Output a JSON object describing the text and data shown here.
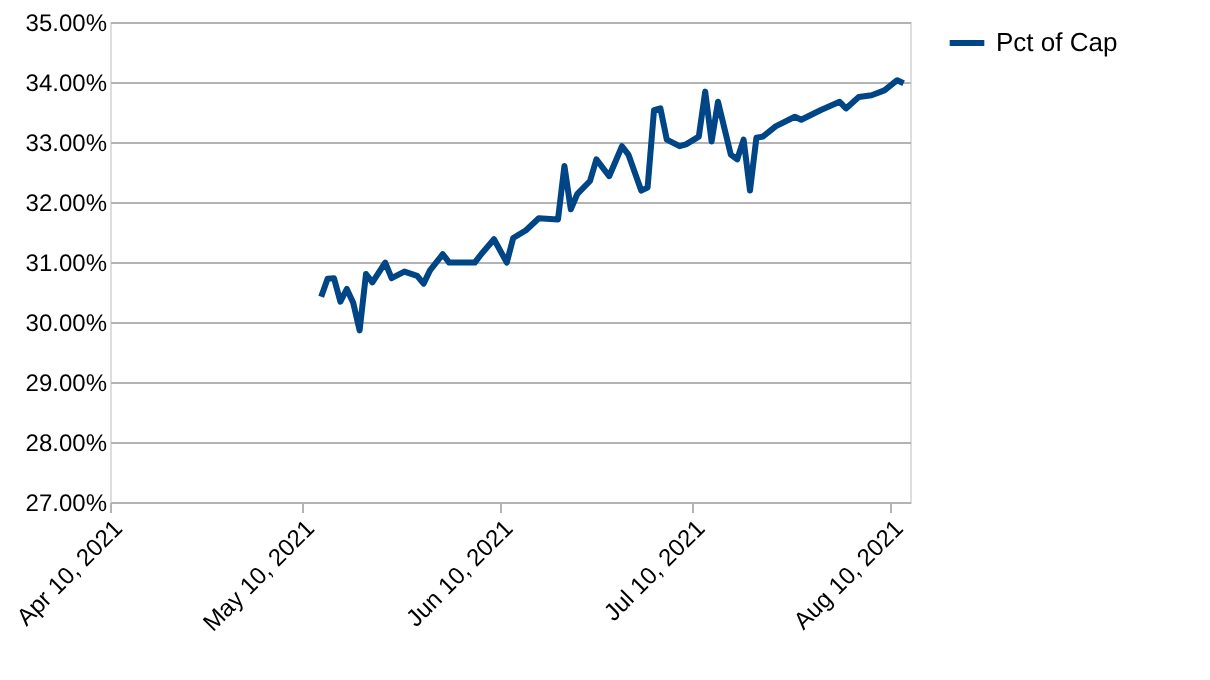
{
  "chart_data": {
    "type": "line",
    "legend": "right",
    "grid": "y",
    "marker": "none",
    "line_style": "solid",
    "xlim": [
      "2021-04-10",
      "2021-08-13"
    ],
    "xticks": [
      {
        "value": "2021-04-10",
        "label": "Apr 10, 2021"
      },
      {
        "value": "2021-05-10",
        "label": "May 10, 2021"
      },
      {
        "value": "2021-06-10",
        "label": "Jun 10, 2021"
      },
      {
        "value": "2021-07-10",
        "label": "Jul 10, 2021"
      },
      {
        "value": "2021-08-10",
        "label": "Aug 10, 2021"
      }
    ],
    "ylim": [
      27,
      35
    ],
    "yticks": [
      {
        "value": 27,
        "label": "27.00%"
      },
      {
        "value": 28,
        "label": "28.00%"
      },
      {
        "value": 29,
        "label": "29.00%"
      },
      {
        "value": 30,
        "label": "30.00%"
      },
      {
        "value": 31,
        "label": "31.00%"
      },
      {
        "value": 32,
        "label": "32.00%"
      },
      {
        "value": 33,
        "label": "33.00%"
      },
      {
        "value": 34,
        "label": "34.00%"
      },
      {
        "value": 35,
        "label": "35.00%"
      }
    ],
    "x": [
      "2021-05-13",
      "2021-05-14",
      "2021-05-15",
      "2021-05-16",
      "2021-05-17",
      "2021-05-18",
      "2021-05-19",
      "2021-05-20",
      "2021-05-21",
      "2021-05-23",
      "2021-05-24",
      "2021-05-26",
      "2021-05-28",
      "2021-05-29",
      "2021-05-30",
      "2021-06-01",
      "2021-06-02",
      "2021-06-06",
      "2021-06-07",
      "2021-06-09",
      "2021-06-11",
      "2021-06-12",
      "2021-06-14",
      "2021-06-16",
      "2021-06-19",
      "2021-06-20",
      "2021-06-21",
      "2021-06-22",
      "2021-06-24",
      "2021-06-25",
      "2021-06-27",
      "2021-06-29",
      "2021-06-30",
      "2021-07-02",
      "2021-07-03",
      "2021-07-04",
      "2021-07-05",
      "2021-07-06",
      "2021-07-08",
      "2021-07-09",
      "2021-07-11",
      "2021-07-12",
      "2021-07-13",
      "2021-07-14",
      "2021-07-15",
      "2021-07-16",
      "2021-07-17",
      "2021-07-18",
      "2021-07-19",
      "2021-07-20",
      "2021-07-21",
      "2021-07-23",
      "2021-07-26",
      "2021-07-27",
      "2021-07-30",
      "2021-08-02",
      "2021-08-03",
      "2021-08-05",
      "2021-08-07",
      "2021-08-09",
      "2021-08-11",
      "2021-08-12"
    ],
    "series": [
      {
        "name": "Pct of Cap",
        "color": "#004586",
        "values": [
          30.42,
          30.72,
          30.73,
          30.34,
          30.55,
          30.32,
          29.86,
          30.8,
          30.66,
          30.99,
          30.73,
          30.84,
          30.77,
          30.64,
          30.86,
          31.13,
          30.99,
          30.99,
          31.13,
          31.38,
          30.99,
          31.4,
          31.53,
          31.73,
          31.71,
          32.6,
          31.88,
          32.13,
          32.35,
          32.71,
          32.43,
          32.93,
          32.79,
          32.19,
          32.24,
          33.53,
          33.56,
          33.04,
          32.93,
          32.96,
          33.09,
          33.84,
          33.01,
          33.67,
          33.23,
          32.79,
          32.71,
          33.04,
          32.19,
          33.07,
          33.09,
          33.26,
          33.42,
          33.37,
          33.53,
          33.67,
          33.56,
          33.75,
          33.78,
          33.86,
          34.03,
          33.98
        ]
      }
    ]
  }
}
